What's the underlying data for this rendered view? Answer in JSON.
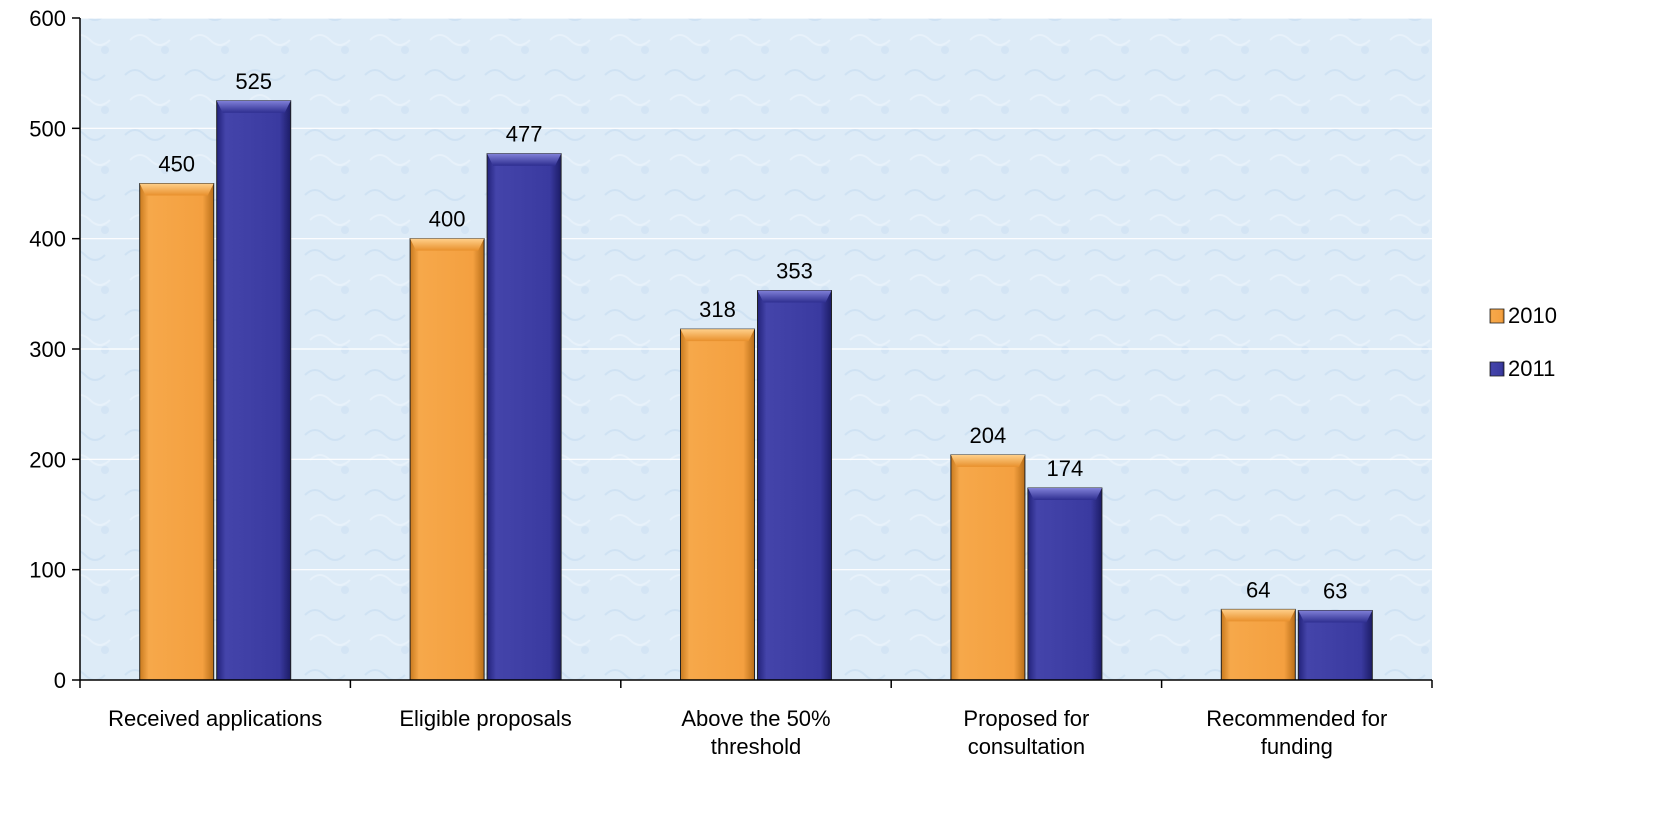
{
  "chart_data": {
    "type": "bar",
    "title": "",
    "xlabel": "",
    "ylabel": "",
    "categories": [
      [
        "Received applications"
      ],
      [
        "Eligible proposals"
      ],
      [
        "Above the 50%",
        "threshold"
      ],
      [
        "Proposed for",
        "consultation"
      ],
      [
        "Recommended for",
        "funding"
      ]
    ],
    "series": [
      {
        "name": "2010",
        "values": [
          450,
          400,
          318,
          204,
          64
        ],
        "color": "#F4A040"
      },
      {
        "name": "2011",
        "values": [
          525,
          477,
          353,
          174,
          63
        ],
        "color": "#3A3AA0"
      }
    ],
    "ylim": [
      0,
      600
    ],
    "yticks": [
      0,
      100,
      200,
      300,
      400,
      500,
      600
    ],
    "grid": true,
    "legend": "right",
    "plot_background": "#DDEBF7"
  }
}
